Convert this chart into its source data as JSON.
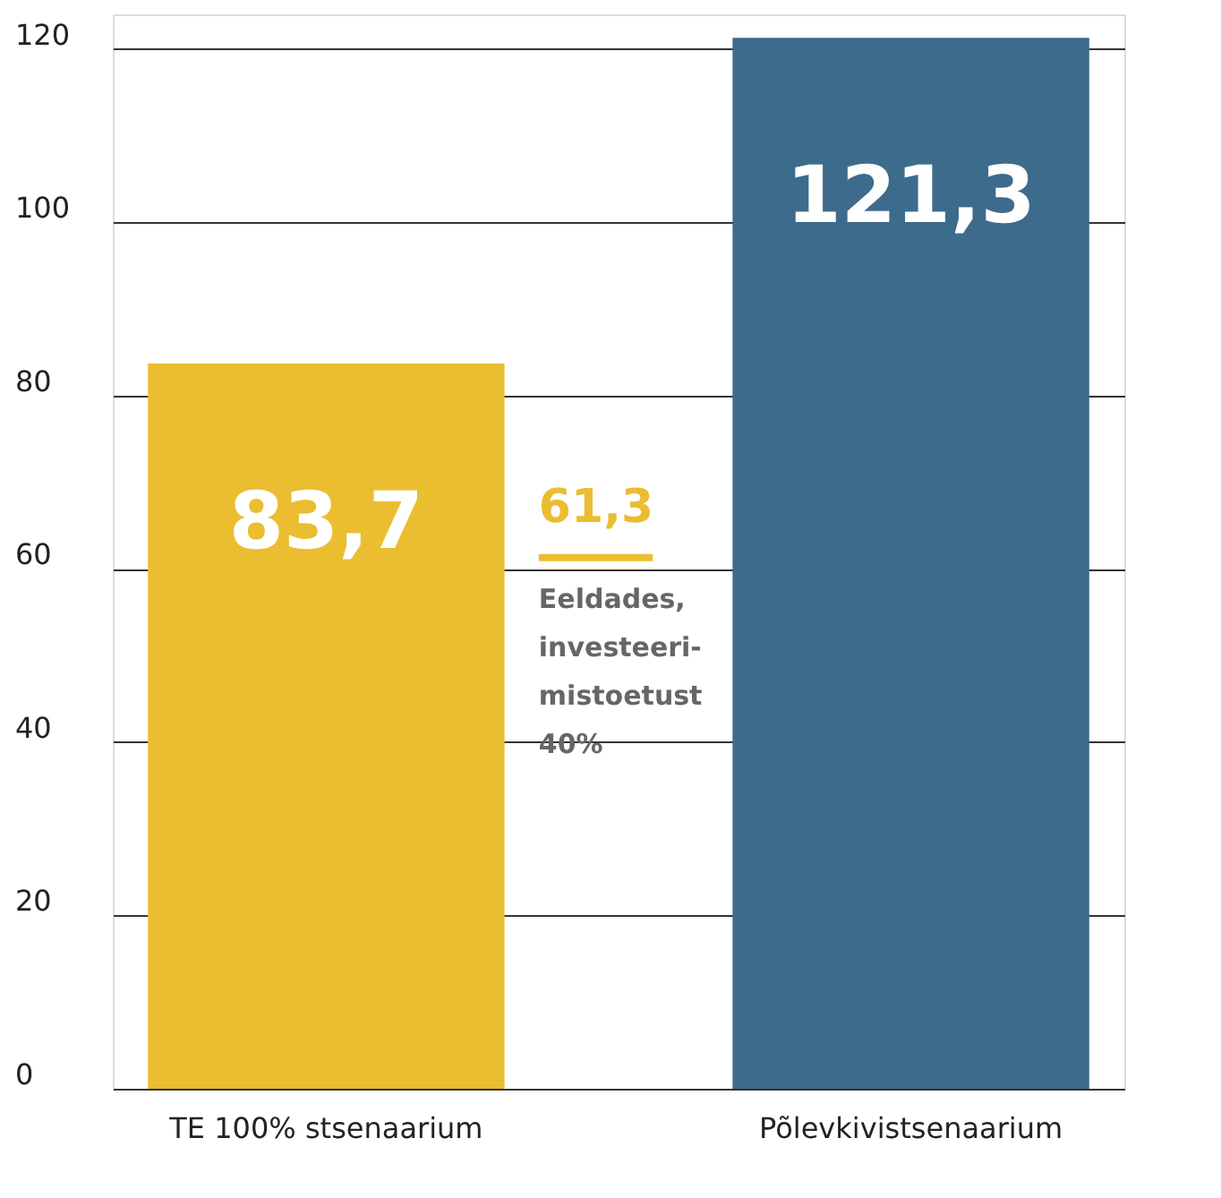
{
  "chart_data": {
    "type": "bar",
    "categories": [
      "TE 100% stsenaarium",
      "Põlevkivistsenaarium"
    ],
    "values": [
      83.7,
      121.3
    ],
    "colors": [
      "#ebbd30",
      "#3d6b8c"
    ],
    "value_labels": [
      "83,7",
      "121,3"
    ],
    "ylim": [
      0,
      124
    ],
    "yticks": [
      0,
      20,
      40,
      60,
      80,
      100,
      120
    ],
    "grid": "y",
    "ref_lines": [
      {
        "axis": "y",
        "value": 61.3,
        "label": "61,3",
        "color": "#ebbd30"
      }
    ],
    "annotations": [
      "Eeldades,\ninvesteeri-\nmistoetust\n40%"
    ]
  }
}
